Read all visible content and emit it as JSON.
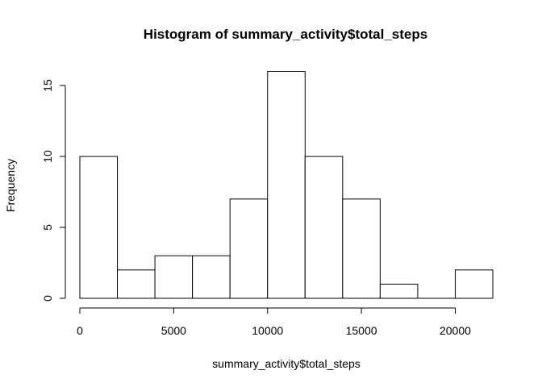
{
  "chart_data": {
    "type": "bar",
    "subtype": "histogram",
    "title": "Histogram of summary_activity$total_steps",
    "xlabel": "summary_activity$total_steps",
    "ylabel": "Frequency",
    "bin_edges": [
      0,
      2000,
      4000,
      6000,
      8000,
      10000,
      12000,
      14000,
      16000,
      18000,
      20000,
      22000
    ],
    "values": [
      10,
      2,
      3,
      3,
      7,
      16,
      10,
      7,
      1,
      0,
      2
    ],
    "xlim": [
      0,
      22000
    ],
    "ylim": [
      0,
      16
    ],
    "x_ticks": [
      0,
      5000,
      10000,
      15000,
      20000
    ],
    "x_tick_labels": [
      "0",
      "5000",
      "10000",
      "15000",
      "20000"
    ],
    "y_ticks": [
      0,
      5,
      10,
      15
    ],
    "y_tick_labels": [
      "0",
      "5",
      "10",
      "15"
    ],
    "grid": false,
    "legend": "none",
    "bar_fill": "#ffffff",
    "bar_stroke": "#000000"
  }
}
